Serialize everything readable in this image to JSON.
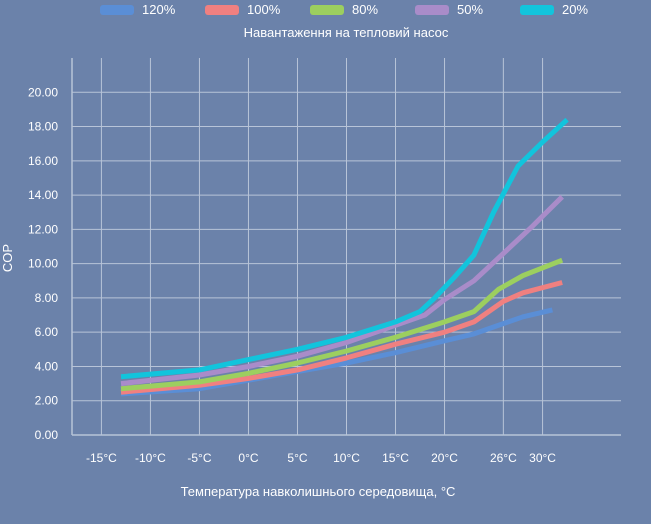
{
  "chart_data": {
    "type": "line",
    "title": "Навантаження на тепловий насос",
    "xlabel": "Температура навколишнього середовища, °C",
    "ylabel": "COP",
    "x_ticks": [
      "-15°C",
      "-10°C",
      "-5°C",
      "0°C",
      "5°C",
      "10°C",
      "15°C",
      "20°C",
      "26°C",
      "30°C"
    ],
    "y_ticks": [
      "0.00",
      "2.00",
      "4.00",
      "6.00",
      "8.00",
      "10.00",
      "12.00",
      "14.00",
      "16.00",
      "18.00",
      "20.00"
    ],
    "xlim": [
      -18,
      38
    ],
    "ylim": [
      0,
      22
    ],
    "grid": true,
    "legend_position": "top",
    "background_color": "#6b82aa",
    "grid_color": "#b8c4d8",
    "series": [
      {
        "name": "120%",
        "color": "#5a8ed6",
        "points": [
          [
            -13,
            2.4
          ],
          [
            -5,
            2.7
          ],
          [
            0,
            3.2
          ],
          [
            5,
            3.7
          ],
          [
            10,
            4.2
          ],
          [
            15,
            4.8
          ],
          [
            20,
            5.5
          ],
          [
            23,
            5.9
          ],
          [
            25,
            6.3
          ],
          [
            28,
            6.9
          ],
          [
            31,
            7.3
          ]
        ]
      },
      {
        "name": "100%",
        "color": "#f08080",
        "points": [
          [
            -13,
            2.5
          ],
          [
            -5,
            2.9
          ],
          [
            0,
            3.3
          ],
          [
            5,
            3.8
          ],
          [
            10,
            4.5
          ],
          [
            15,
            5.3
          ],
          [
            20,
            6.0
          ],
          [
            23,
            6.6
          ],
          [
            26,
            7.8
          ],
          [
            28,
            8.3
          ],
          [
            32,
            8.9
          ]
        ]
      },
      {
        "name": "80%",
        "color": "#9ccf5f",
        "points": [
          [
            -13,
            2.7
          ],
          [
            -5,
            3.1
          ],
          [
            0,
            3.6
          ],
          [
            5,
            4.2
          ],
          [
            10,
            4.9
          ],
          [
            15,
            5.7
          ],
          [
            20,
            6.6
          ],
          [
            23,
            7.2
          ],
          [
            25.5,
            8.5
          ],
          [
            28,
            9.3
          ],
          [
            32,
            10.2
          ]
        ]
      },
      {
        "name": "50%",
        "color": "#a98cc9",
        "points": [
          [
            -13,
            3.0
          ],
          [
            -5,
            3.5
          ],
          [
            0,
            4.0
          ],
          [
            5,
            4.6
          ],
          [
            10,
            5.4
          ],
          [
            15,
            6.4
          ],
          [
            18,
            7.0
          ],
          [
            20,
            7.9
          ],
          [
            23,
            9.0
          ],
          [
            26,
            10.6
          ],
          [
            29,
            12.2
          ],
          [
            32,
            13.9
          ]
        ]
      },
      {
        "name": "20%",
        "color": "#12c4dc",
        "points": [
          [
            -13,
            3.4
          ],
          [
            -5,
            3.8
          ],
          [
            0,
            4.4
          ],
          [
            5,
            5.0
          ],
          [
            10,
            5.7
          ],
          [
            15,
            6.6
          ],
          [
            17.5,
            7.2
          ],
          [
            19,
            8.0
          ],
          [
            21,
            9.2
          ],
          [
            23,
            10.5
          ],
          [
            25,
            13.0
          ],
          [
            27.5,
            15.7
          ],
          [
            30,
            17.1
          ],
          [
            32.5,
            18.4
          ]
        ]
      }
    ]
  }
}
